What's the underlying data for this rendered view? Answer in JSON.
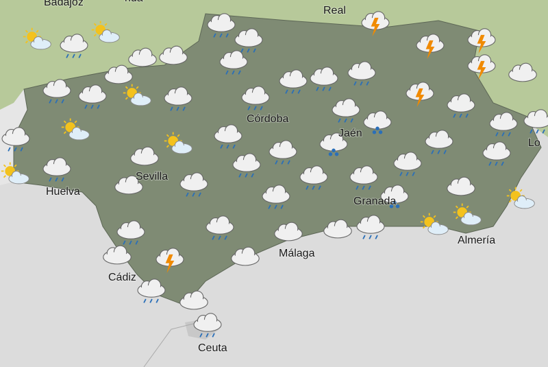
{
  "map": {
    "labels": [
      "Badajoz",
      "rida",
      "Real",
      "Córdoba",
      "Jaén",
      "Sevilla",
      "Huelva",
      "Granada",
      "Almería",
      "Málaga",
      "Cádiz",
      "Ceuta",
      "Lo"
    ]
  }
}
